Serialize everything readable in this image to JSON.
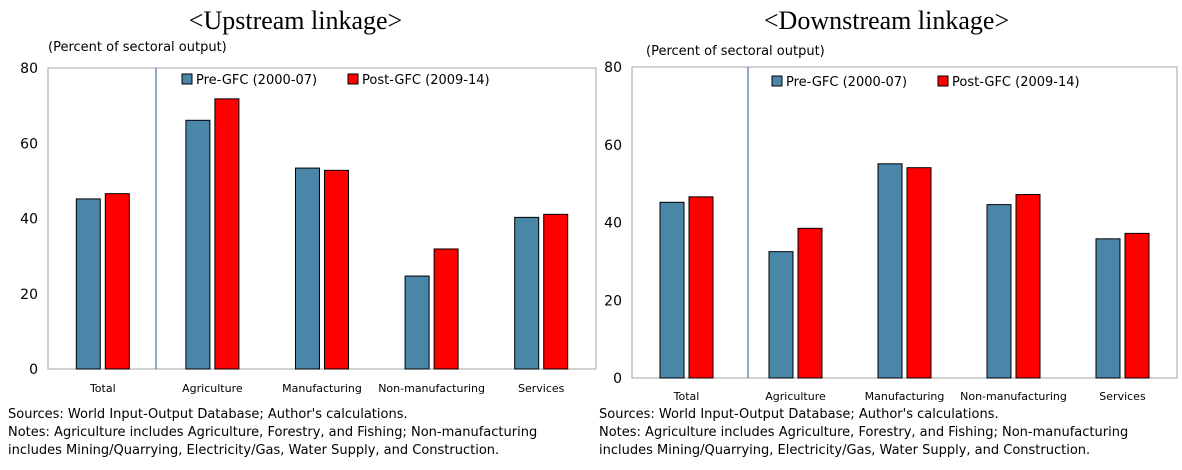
{
  "chart_data": [
    {
      "type": "bar",
      "title": "<Upstream linkage>",
      "unit_label": "(Percent of sectoral output)",
      "categories": [
        "Total",
        "Agriculture",
        "Manufacturing",
        "Non-manufacturing",
        "Services"
      ],
      "series": [
        {
          "name": "Pre-GFC (2000-07)",
          "color": "#4a86a8",
          "values": [
            45.2,
            66.1,
            53.4,
            24.7,
            40.3
          ]
        },
        {
          "name": "Post-GFC (2009-14)",
          "color": "#ff0000",
          "values": [
            46.6,
            71.8,
            52.8,
            31.9,
            41.1
          ]
        }
      ],
      "ylim": [
        0,
        80
      ],
      "yticks": [
        0,
        20,
        40,
        60,
        80
      ],
      "legend": "top",
      "grid": false,
      "sources": "Sources: World Input-Output Database; Author's calculations.",
      "notes_line1": "Notes: Agriculture includes Agriculture, Forestry, and Fishing; Non-manufacturing",
      "notes_line2": "includes Mining/Quarrying, Electricity/Gas, Water Supply, and Construction."
    },
    {
      "type": "bar",
      "title": "<Downstream linkage>",
      "unit_label": "(Percent of sectoral output)",
      "categories": [
        "Total",
        "Agriculture",
        "Manufacturing",
        "Non-manufacturing",
        "Services"
      ],
      "series": [
        {
          "name": "Pre-GFC (2000-07)",
          "color": "#4a86a8",
          "values": [
            45.2,
            32.5,
            55.1,
            44.6,
            35.8
          ]
        },
        {
          "name": "Post-GFC (2009-14)",
          "color": "#ff0000",
          "values": [
            46.6,
            38.5,
            54.1,
            47.2,
            37.2
          ]
        }
      ],
      "ylim": [
        0,
        80
      ],
      "yticks": [
        0,
        20,
        40,
        60,
        80
      ],
      "legend": "top",
      "grid": false,
      "sources": "Sources: World Input-Output Database; Author's calculations.",
      "notes_line1": "Notes: Agriculture includes Agriculture, Forestry, and Fishing; Non-manufacturing",
      "notes_line2": "includes Mining/Quarrying, Electricity/Gas, Water Supply, and Construction."
    }
  ]
}
